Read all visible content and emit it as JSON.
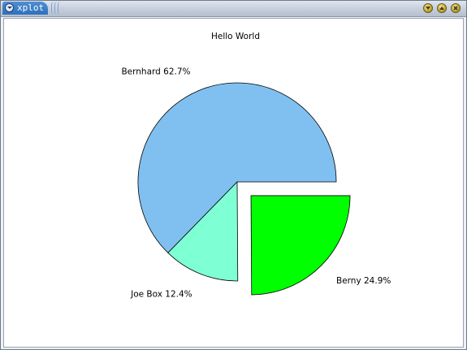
{
  "window": {
    "title": "xplot",
    "controls": [
      "minimize-icon",
      "maximize-icon",
      "close-icon"
    ]
  },
  "colors": {
    "Bernhard": "#80c0f0",
    "Joe Box": "#7fffd4",
    "Berny": "#00ff00"
  },
  "chart_data": {
    "type": "pie",
    "title": "Hello World",
    "slices": [
      {
        "label": "Bernhard",
        "percent": 62.7,
        "percent_text": "62.7%",
        "value": 62.7,
        "exploded": false
      },
      {
        "label": "Joe Box",
        "percent": 12.4,
        "percent_text": "12.4%",
        "value": 12.4,
        "exploded": false
      },
      {
        "label": "Berny",
        "percent": 24.9,
        "percent_text": "24.9%",
        "value": 24.9,
        "exploded": true
      }
    ],
    "legend": "none"
  }
}
